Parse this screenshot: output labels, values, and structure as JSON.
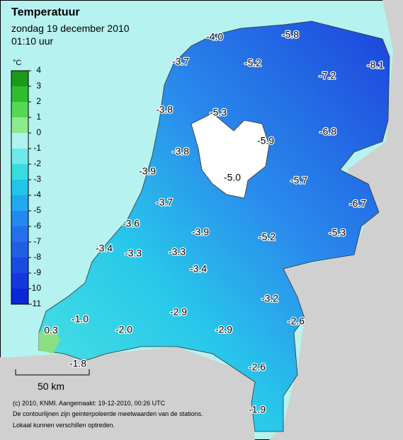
{
  "header": {
    "title": "Temperatuur",
    "date": "zondag 19 december 2010",
    "time": "01:10 uur"
  },
  "legend": {
    "unit": "°C",
    "labels": [
      "4",
      "3",
      "2",
      "1",
      "0",
      "-1",
      "-2",
      "-3",
      "-4",
      "-5",
      "-6",
      "-7",
      "-8",
      "-9",
      "-10",
      "-11"
    ]
  },
  "stations": [
    "-4.0",
    "-5.8",
    "-3.7",
    "-5.2",
    "-7.2",
    "-8.1",
    "-3.8",
    "-5.3",
    "-5.9",
    "-6.8",
    "-3.8",
    "-3.9",
    "-5.0",
    "-5.7",
    "-3.7",
    "-6.7",
    "-3.6",
    "-3.9",
    "-5.2",
    "-5.3",
    "-3.4",
    "-3.3",
    "-3.3",
    "-3.4",
    "-3.2",
    "-1.0",
    "-2.9",
    "-2.6",
    "0.3",
    "-2.0",
    "-2.9",
    "-1.8",
    "-2.6",
    "-1.9"
  ],
  "scale": "50 km",
  "footer": [
    "(c) 2010, KNMI. Aangemaakt: 19-12-2010, 00:26 UTC",
    "De contourlijnen zijn geinterpoleerde meetwaarden van de stations.",
    "Lokaal kunnen verschillen optreden."
  ]
}
